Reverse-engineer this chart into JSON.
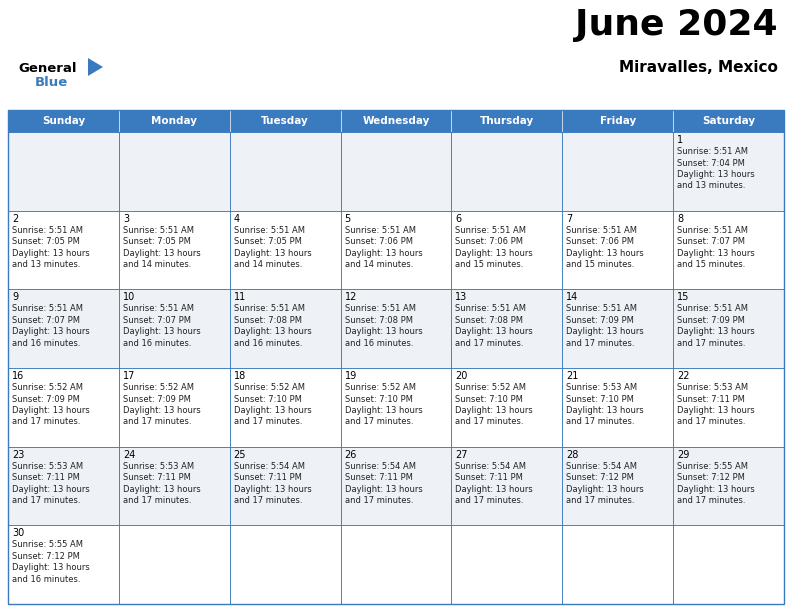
{
  "title": "June 2024",
  "subtitle": "Miravalles, Mexico",
  "days_of_week": [
    "Sunday",
    "Monday",
    "Tuesday",
    "Wednesday",
    "Thursday",
    "Friday",
    "Saturday"
  ],
  "header_bg": "#3a7abf",
  "header_text": "#ffffff",
  "row0_bg": "#eef2f7",
  "row1_bg": "#ffffff",
  "border_color": "#3a7abf",
  "text_color": "#222222",
  "calendar_data": [
    [
      null,
      null,
      null,
      null,
      null,
      null,
      {
        "day": "1",
        "sunrise": "5:51 AM",
        "sunset": "7:04 PM",
        "daylight": "13 hours\nand 13 minutes."
      }
    ],
    [
      {
        "day": "2",
        "sunrise": "5:51 AM",
        "sunset": "7:05 PM",
        "daylight": "13 hours\nand 13 minutes."
      },
      {
        "day": "3",
        "sunrise": "5:51 AM",
        "sunset": "7:05 PM",
        "daylight": "13 hours\nand 14 minutes."
      },
      {
        "day": "4",
        "sunrise": "5:51 AM",
        "sunset": "7:05 PM",
        "daylight": "13 hours\nand 14 minutes."
      },
      {
        "day": "5",
        "sunrise": "5:51 AM",
        "sunset": "7:06 PM",
        "daylight": "13 hours\nand 14 minutes."
      },
      {
        "day": "6",
        "sunrise": "5:51 AM",
        "sunset": "7:06 PM",
        "daylight": "13 hours\nand 15 minutes."
      },
      {
        "day": "7",
        "sunrise": "5:51 AM",
        "sunset": "7:06 PM",
        "daylight": "13 hours\nand 15 minutes."
      },
      {
        "day": "8",
        "sunrise": "5:51 AM",
        "sunset": "7:07 PM",
        "daylight": "13 hours\nand 15 minutes."
      }
    ],
    [
      {
        "day": "9",
        "sunrise": "5:51 AM",
        "sunset": "7:07 PM",
        "daylight": "13 hours\nand 16 minutes."
      },
      {
        "day": "10",
        "sunrise": "5:51 AM",
        "sunset": "7:07 PM",
        "daylight": "13 hours\nand 16 minutes."
      },
      {
        "day": "11",
        "sunrise": "5:51 AM",
        "sunset": "7:08 PM",
        "daylight": "13 hours\nand 16 minutes."
      },
      {
        "day": "12",
        "sunrise": "5:51 AM",
        "sunset": "7:08 PM",
        "daylight": "13 hours\nand 16 minutes."
      },
      {
        "day": "13",
        "sunrise": "5:51 AM",
        "sunset": "7:08 PM",
        "daylight": "13 hours\nand 17 minutes."
      },
      {
        "day": "14",
        "sunrise": "5:51 AM",
        "sunset": "7:09 PM",
        "daylight": "13 hours\nand 17 minutes."
      },
      {
        "day": "15",
        "sunrise": "5:51 AM",
        "sunset": "7:09 PM",
        "daylight": "13 hours\nand 17 minutes."
      }
    ],
    [
      {
        "day": "16",
        "sunrise": "5:52 AM",
        "sunset": "7:09 PM",
        "daylight": "13 hours\nand 17 minutes."
      },
      {
        "day": "17",
        "sunrise": "5:52 AM",
        "sunset": "7:09 PM",
        "daylight": "13 hours\nand 17 minutes."
      },
      {
        "day": "18",
        "sunrise": "5:52 AM",
        "sunset": "7:10 PM",
        "daylight": "13 hours\nand 17 minutes."
      },
      {
        "day": "19",
        "sunrise": "5:52 AM",
        "sunset": "7:10 PM",
        "daylight": "13 hours\nand 17 minutes."
      },
      {
        "day": "20",
        "sunrise": "5:52 AM",
        "sunset": "7:10 PM",
        "daylight": "13 hours\nand 17 minutes."
      },
      {
        "day": "21",
        "sunrise": "5:53 AM",
        "sunset": "7:10 PM",
        "daylight": "13 hours\nand 17 minutes."
      },
      {
        "day": "22",
        "sunrise": "5:53 AM",
        "sunset": "7:11 PM",
        "daylight": "13 hours\nand 17 minutes."
      }
    ],
    [
      {
        "day": "23",
        "sunrise": "5:53 AM",
        "sunset": "7:11 PM",
        "daylight": "13 hours\nand 17 minutes."
      },
      {
        "day": "24",
        "sunrise": "5:53 AM",
        "sunset": "7:11 PM",
        "daylight": "13 hours\nand 17 minutes."
      },
      {
        "day": "25",
        "sunrise": "5:54 AM",
        "sunset": "7:11 PM",
        "daylight": "13 hours\nand 17 minutes."
      },
      {
        "day": "26",
        "sunrise": "5:54 AM",
        "sunset": "7:11 PM",
        "daylight": "13 hours\nand 17 minutes."
      },
      {
        "day": "27",
        "sunrise": "5:54 AM",
        "sunset": "7:11 PM",
        "daylight": "13 hours\nand 17 minutes."
      },
      {
        "day": "28",
        "sunrise": "5:54 AM",
        "sunset": "7:12 PM",
        "daylight": "13 hours\nand 17 minutes."
      },
      {
        "day": "29",
        "sunrise": "5:55 AM",
        "sunset": "7:12 PM",
        "daylight": "13 hours\nand 17 minutes."
      }
    ],
    [
      {
        "day": "30",
        "sunrise": "5:55 AM",
        "sunset": "7:12 PM",
        "daylight": "13 hours\nand 16 minutes."
      },
      null,
      null,
      null,
      null,
      null,
      null
    ]
  ],
  "fig_width": 7.92,
  "fig_height": 6.12,
  "dpi": 100
}
